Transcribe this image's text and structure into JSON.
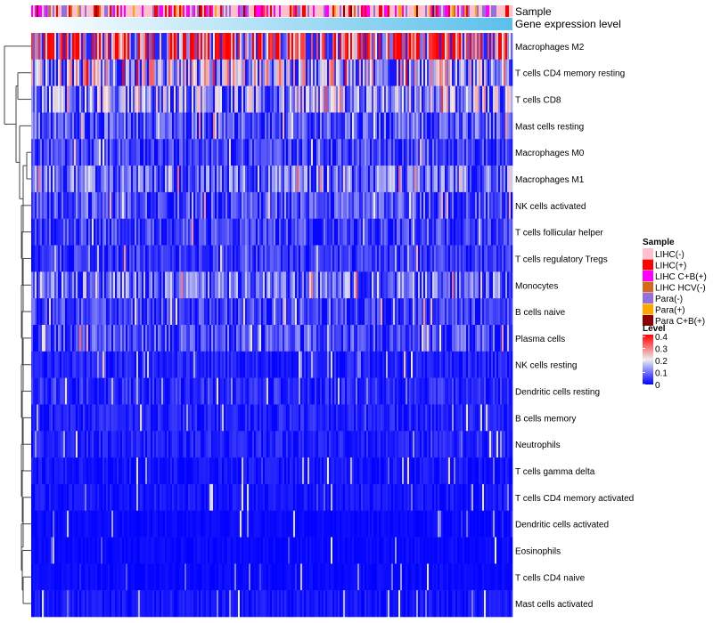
{
  "chart_data": {
    "type": "heatmap",
    "title": "",
    "annotations": [
      "Sample",
      "Gene expression level"
    ],
    "rows": [
      "Macrophages M2",
      "T cells CD4 memory resting",
      "T cells CD8",
      "Mast cells resting",
      "Macrophages M0",
      "Macrophages M1",
      "NK cells activated",
      "T cells follicular helper",
      "T cells regulatory  Tregs",
      "Monocytes",
      "B cells naive",
      "Plasma cells",
      "NK cells resting",
      "Dendritic cells resting",
      "B cells memory",
      "Neutrophils",
      "T cells gamma delta",
      "T cells CD4 memory activated",
      "Dendritic cells activated",
      "Eosinophils",
      "T cells CD4 naive",
      "Mast cells activated"
    ],
    "row_mean_level": [
      0.3,
      0.18,
      0.14,
      0.08,
      0.06,
      0.1,
      0.07,
      0.06,
      0.05,
      0.1,
      0.06,
      0.07,
      0.03,
      0.04,
      0.03,
      0.03,
      0.02,
      0.02,
      0.01,
      0.01,
      0.01,
      0.02
    ],
    "n_samples": 270,
    "sample_legend": {
      "title": "Sample",
      "items": [
        {
          "label": "LIHC(-)",
          "color": "#FFC0CB",
          "share": 0.45
        },
        {
          "label": "LIHC(+)",
          "color": "#FF0000",
          "share": 0.14
        },
        {
          "label": "LIHC C+B(+)",
          "color": "#FF00FF",
          "share": 0.14
        },
        {
          "label": "LIHC HCV(-)",
          "color": "#D2691E",
          "share": 0.03
        },
        {
          "label": "Para(-)",
          "color": "#9370DB",
          "share": 0.14
        },
        {
          "label": "Para(+)",
          "color": "#FFA500",
          "share": 0.07
        },
        {
          "label": "Para C+B(+)",
          "color": "#8B0000",
          "share": 0.03
        }
      ]
    },
    "level_legend": {
      "title": "Level",
      "ticks": [
        "0.4",
        "0.3",
        "0.2",
        "0.1",
        "0"
      ],
      "range": [
        0,
        0.4
      ],
      "colors": [
        "#0000FF",
        "#EEEEEE",
        "#FF0000"
      ]
    },
    "gene_expression_gradient": [
      "#FFFFFF",
      "#5BC0EB"
    ]
  }
}
